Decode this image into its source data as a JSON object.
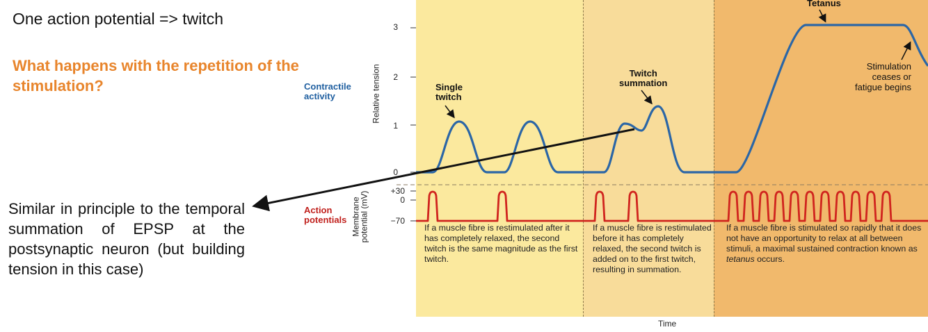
{
  "intro": {
    "line": "One action potential => twitch"
  },
  "question": {
    "text": "What happens with the repetition of the stimulation?"
  },
  "analogy": {
    "text": "Similar in principle to the temporal summation of EPSP at the postsynaptic neuron (but building tension in this case)"
  },
  "figure": {
    "contractile_label_1": "Contractile",
    "contractile_label_2": "activity",
    "action_label_1": "Action",
    "action_label_2": "potentials",
    "y_axis_tension": "Relative tension",
    "y_axis_membrane_1": "Membrane",
    "y_axis_membrane_2": "potential (mV)",
    "tension_ticks": [
      "3",
      "2",
      "1",
      "0"
    ],
    "membrane_ticks": [
      "+30",
      "0",
      "−70"
    ],
    "x_axis": "Time",
    "single_twitch_1": "Single",
    "single_twitch_2": "twitch",
    "twitch_summation_1": "Twitch",
    "twitch_summation_2": "summation",
    "tetanus": "Tetanus",
    "stimulation_ceases": "Stimulation ceases or fatigue begins",
    "caption1": "If a muscle fibre is restimulated after it has completely relaxed, the second twitch is the same magnitude as the first twitch.",
    "caption2": "If a muscle fibre is restimulated before it has completely relaxed, the second twitch is added on to the first twitch, resulting in summation.",
    "caption3_pre": "If a muscle fibre is stimulated so rapidly that it does not have an opportunity to relax at all between stimuli, a maximal sustained contraction known as ",
    "caption3_em": "tetanus",
    "caption3_post": " occurs.",
    "colors": {
      "tension_curve": "#2b66a6",
      "action_potential": "#d0241e",
      "panel1": "#fbe99e",
      "panel2": "#f8dc9a",
      "panel3": "#f1b96c",
      "question": "#e8852c"
    }
  }
}
